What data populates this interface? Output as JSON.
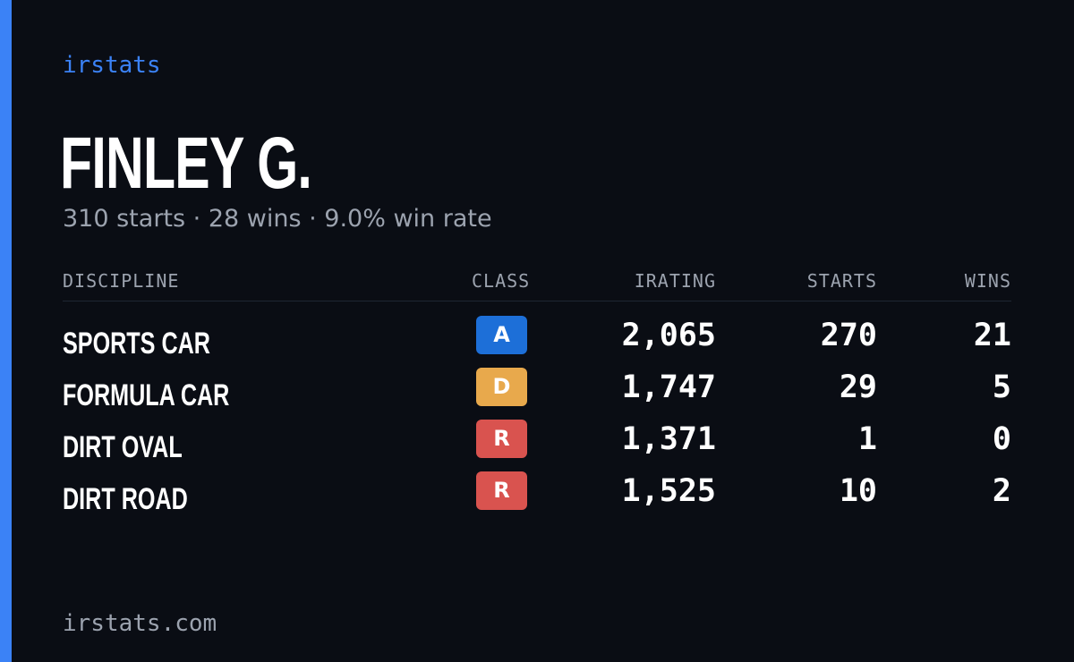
{
  "brand": "irstats",
  "driver": {
    "name": "FINLEY G.",
    "summary": "310 starts · 28 wins · 9.0% win rate"
  },
  "table": {
    "headers": {
      "discipline": "DISCIPLINE",
      "class": "CLASS",
      "irating": "IRATING",
      "starts": "STARTS",
      "wins": "WINS"
    },
    "rows": [
      {
        "discipline": "SPORTS CAR",
        "class": "A",
        "class_color": "#1d6fd8",
        "irating": "2,065",
        "starts": "270",
        "wins": "21"
      },
      {
        "discipline": "FORMULA CAR",
        "class": "D",
        "class_color": "#e8a94c",
        "irating": "1,747",
        "starts": "29",
        "wins": "5"
      },
      {
        "discipline": "DIRT OVAL",
        "class": "R",
        "class_color": "#d9534f",
        "irating": "1,371",
        "starts": "1",
        "wins": "0"
      },
      {
        "discipline": "DIRT ROAD",
        "class": "R",
        "class_color": "#d9534f",
        "irating": "1,525",
        "starts": "10",
        "wins": "2"
      }
    ]
  },
  "footer": "irstats.com",
  "colors": {
    "accent": "#3b82f6",
    "background": "#0a0d14",
    "muted": "#9ca3af"
  }
}
